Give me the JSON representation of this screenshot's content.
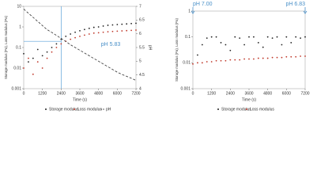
{
  "chart_data": [
    {
      "type": "scatter",
      "x_label": "Time (s)",
      "y_label": "Storage modulus (Pa), Loss modulus (Pa)",
      "y2_label": "pH",
      "annotations": [
        "pH 5.83"
      ],
      "x": [
        0,
        300,
        600,
        900,
        1200,
        1500,
        1800,
        2100,
        2400,
        2700,
        3000,
        3300,
        3600,
        3900,
        4200,
        4500,
        4800,
        5100,
        5400,
        5700,
        6000,
        6300,
        6600,
        6900,
        7200
      ],
      "xlim": [
        0,
        7200
      ],
      "xticks": [
        0,
        1200,
        2400,
        3600,
        4800,
        6000,
        7200
      ],
      "ylim": [
        0.001,
        10
      ],
      "yticks": [
        0.001,
        0.01,
        0.1,
        1,
        10
      ],
      "log_y": true,
      "y2lim": [
        4,
        7
      ],
      "y2ticks": [
        4,
        4.5,
        5,
        5.5,
        6,
        6.5,
        7
      ],
      "reference_lines": {
        "x": 2400,
        "y": 0.2,
        "color": "#5aa0d8"
      },
      "series": [
        {
          "name": "Storage modulus",
          "color": "#222222",
          "values": [
            0.05,
            0.02,
            0.03,
            0.08,
            0.04,
            0.06,
            0.1,
            0.15,
            0.25,
            0.35,
            0.45,
            0.55,
            0.65,
            0.75,
            0.85,
            0.95,
            1.0,
            1.1,
            1.2,
            1.25,
            1.3,
            1.35,
            1.4,
            1.45,
            1.5
          ]
        },
        {
          "name": "Loss modulus",
          "color": "#c0392b",
          "values": [
            0.01,
            0.03,
            0.005,
            0.02,
            0.01,
            0.03,
            0.06,
            0.1,
            0.15,
            0.2,
            0.25,
            0.3,
            0.35,
            0.4,
            0.45,
            0.5,
            0.52,
            0.55,
            0.58,
            0.6,
            0.62,
            0.64,
            0.66,
            0.68,
            0.7
          ]
        },
        {
          "name": "pH",
          "color": "#333333",
          "axis": "y2",
          "line_style": "dashed",
          "values": [
            6.9,
            6.75,
            6.6,
            6.45,
            6.3,
            6.15,
            6.05,
            5.94,
            5.83,
            5.72,
            5.6,
            5.5,
            5.4,
            5.3,
            5.2,
            5.1,
            5.0,
            4.9,
            4.8,
            4.7,
            4.6,
            4.52,
            4.45,
            4.38,
            4.3
          ]
        }
      ]
    },
    {
      "type": "scatter",
      "x_label": "Time (s)",
      "y_label": "Storage modulus (Pa), Loss modulus (Pa)",
      "annotations": [
        "pH 7.00",
        "pH 6.83"
      ],
      "x": [
        0,
        300,
        600,
        900,
        1200,
        1500,
        1800,
        2100,
        2400,
        2700,
        3000,
        3300,
        3600,
        3900,
        4200,
        4500,
        4800,
        5100,
        5400,
        5700,
        6000,
        6300,
        6600,
        6900,
        7200
      ],
      "xlim": [
        0,
        7200
      ],
      "xticks": [
        0,
        1200,
        2400,
        3600,
        4800,
        6000,
        7200
      ],
      "ylim": [
        0.001,
        1
      ],
      "yticks": [
        0.001,
        0.01,
        0.1,
        1
      ],
      "log_y": true,
      "series": [
        {
          "name": "Storage modulus",
          "color": "#222222",
          "values": [
            null,
            0.02,
            0.05,
            0.09,
            0.1,
            0.1,
            0.06,
            0.05,
            0.03,
            0.1,
            0.09,
            0.05,
            0.1,
            0.1,
            0.06,
            0.04,
            0.1,
            0.09,
            0.1,
            0.05,
            0.1,
            0.06,
            0.1,
            0.09,
            0.1
          ]
        },
        {
          "name": "Loss modulus",
          "color": "#c0392b",
          "values": [
            0.009,
            0.01,
            0.01,
            0.011,
            0.011,
            0.012,
            0.012,
            0.012,
            0.013,
            0.013,
            0.013,
            0.014,
            0.014,
            0.014,
            0.015,
            0.015,
            0.015,
            0.016,
            0.016,
            0.016,
            0.017,
            0.017,
            0.017,
            0.018,
            0.018
          ]
        }
      ]
    }
  ]
}
